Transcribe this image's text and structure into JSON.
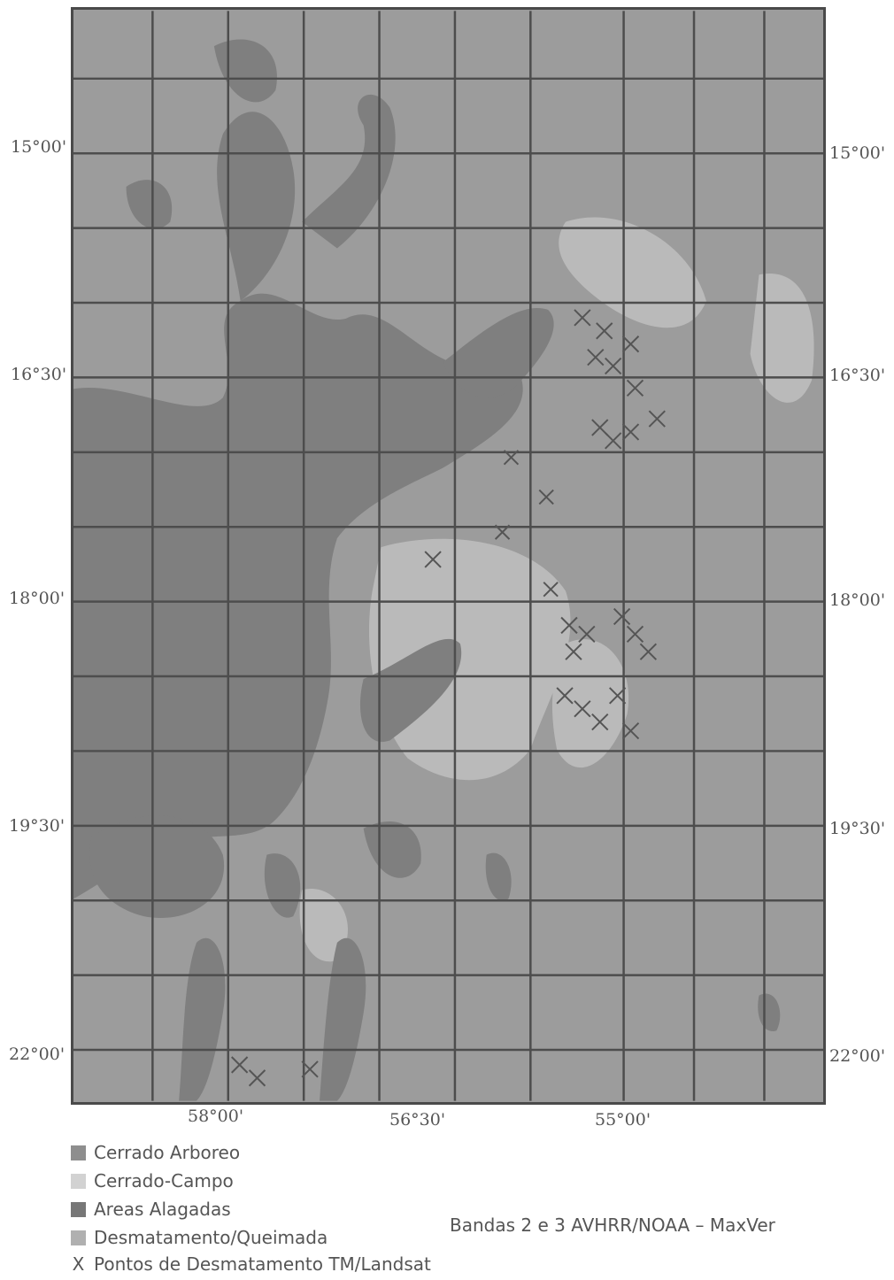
{
  "map": {
    "latitude_labels": [
      "15°00'",
      "16°30'",
      "18°00'",
      "19°30'",
      "22°00'"
    ],
    "longitude_labels": [
      "58°00'",
      "56°30'",
      "55°00'"
    ],
    "colors": {
      "cerrado_arboreo": "#9a9a9a",
      "cerrado_campo": "#c4c4c4",
      "areas_alagadas": "#7f7f7f",
      "desmatamento": "#b3b3b3",
      "grid": "#4d4d4d"
    }
  },
  "legend": {
    "items": [
      {
        "label": "Cerrado Arboreo",
        "color": "#8e8e8e",
        "icon": "square-swatch"
      },
      {
        "label": "Cerrado-Campo",
        "color": "#d2d2d2",
        "icon": "square-swatch"
      },
      {
        "label": "Areas Alagadas",
        "color": "#777777",
        "icon": "square-swatch"
      },
      {
        "label": "Desmatamento/Queimada",
        "color": "#b0b0b0",
        "icon": "square-swatch"
      }
    ],
    "points_symbol": "X",
    "points_label": "Pontos de Desmatamento TM/Landsat"
  },
  "caption": "Bandas 2 e 3 AVHRR/NOAA – MaxVer"
}
